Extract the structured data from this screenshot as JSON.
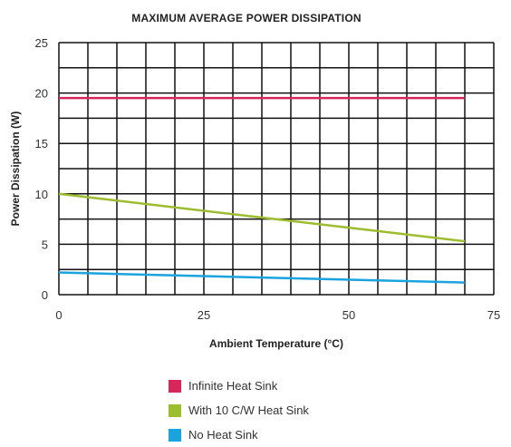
{
  "chart_data": {
    "type": "line",
    "title": "MAXIMUM AVERAGE POWER DISSIPATION",
    "xlabel": "Ambient Temperature (°C)",
    "ylabel": "Power Dissipation (W)",
    "xlim": [
      0,
      75
    ],
    "ylim": [
      0,
      25
    ],
    "x_ticks": [
      "0",
      "25",
      "50",
      "75"
    ],
    "y_ticks": [
      "0",
      "5",
      "10",
      "15",
      "20",
      "25"
    ],
    "grid": true,
    "legend_position": "bottom",
    "series": [
      {
        "name": "Infinite Heat Sink",
        "color": "#d6275a",
        "x": [
          0,
          70
        ],
        "y": [
          19.5,
          19.5
        ]
      },
      {
        "name": "With 10 C/W Heat Sink",
        "color": "#9bbd2e",
        "x": [
          0,
          70
        ],
        "y": [
          10,
          5.3
        ]
      },
      {
        "name": "No Heat Sink",
        "color": "#1aa3dd",
        "x": [
          0,
          70
        ],
        "y": [
          2.2,
          1.2
        ]
      }
    ]
  }
}
